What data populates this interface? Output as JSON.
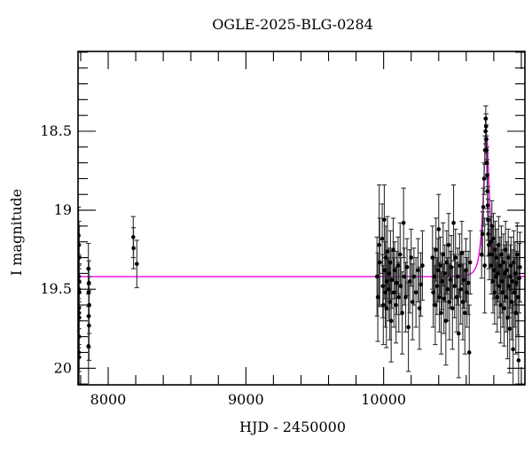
{
  "title": "OGLE-2025-BLG-0284",
  "colors": {
    "background": "#ffffff",
    "frame": "#000000",
    "points": "#000000",
    "error_bars": "#2e2e2e",
    "model_curve": "#f400e8"
  },
  "chart_data": {
    "type": "scatter",
    "title": "OGLE-2025-BLG-0284",
    "xlabel": "HJD - 2450000",
    "ylabel": "I magnitude",
    "x_axis": {
      "range": [
        7781,
        11026
      ],
      "major_ticks": [
        8000,
        9000,
        10000,
        11000
      ],
      "labeled_ticks": [
        8000,
        9000,
        10000
      ],
      "minor_step": 200
    },
    "y_axis": {
      "range": [
        17.995,
        20.105
      ],
      "inverted": true,
      "major_ticks": [
        18.5,
        19.0,
        19.5,
        20.0
      ],
      "labeled_ticks": [
        "18.5",
        "19",
        "19.5",
        "20"
      ],
      "minor_step": 0.1
    },
    "model": {
      "description": "point-lens microlensing (Paczynski) model curve",
      "baseline_mag": 19.42,
      "t0": 10746,
      "tE": 38,
      "u0": 0.47,
      "peak_mag": 18.51
    },
    "points_format": [
      "hjd_minus_2450000",
      "I_mag",
      "err"
    ],
    "points": [
      [
        7785,
        19.16,
        0.18
      ],
      [
        7788,
        19.22,
        0.15
      ],
      [
        7790,
        19.3,
        0.2
      ],
      [
        7786,
        19.42,
        0.14
      ],
      [
        7789,
        19.45,
        0.16
      ],
      [
        7787,
        19.5,
        0.15
      ],
      [
        7791,
        19.52,
        0.18
      ],
      [
        7786,
        19.62,
        0.25
      ],
      [
        7788,
        19.65,
        0.2
      ],
      [
        7790,
        19.68,
        0.22
      ],
      [
        7789,
        19.8,
        0.22
      ],
      [
        7787,
        19.9,
        0.28
      ],
      [
        7789,
        19.93,
        0.18
      ],
      [
        7856,
        19.37,
        0.16
      ],
      [
        7860,
        19.46,
        0.14
      ],
      [
        7858,
        19.52,
        0.15
      ],
      [
        7862,
        19.6,
        0.18
      ],
      [
        7859,
        19.67,
        0.2
      ],
      [
        7861,
        19.73,
        0.22
      ],
      [
        7857,
        19.86,
        0.25
      ],
      [
        8182,
        19.17,
        0.13
      ],
      [
        8184,
        19.24,
        0.13
      ],
      [
        8208,
        19.34,
        0.15
      ],
      [
        9952,
        19.42,
        0.25
      ],
      [
        9958,
        19.55,
        0.28
      ],
      [
        9968,
        19.22,
        0.38
      ],
      [
        9972,
        19.33,
        0.28
      ],
      [
        9990,
        19.18,
        0.22
      ],
      [
        9994,
        19.48,
        0.2
      ],
      [
        9998,
        19.6,
        0.25
      ],
      [
        10005,
        19.06,
        0.22
      ],
      [
        10008,
        19.38,
        0.18
      ],
      [
        10012,
        19.52,
        0.22
      ],
      [
        10016,
        19.3,
        0.2
      ],
      [
        10020,
        19.62,
        0.25
      ],
      [
        10024,
        19.45,
        0.18
      ],
      [
        10028,
        19.26,
        0.22
      ],
      [
        10035,
        19.5,
        0.2
      ],
      [
        10040,
        19.4,
        0.16
      ],
      [
        10045,
        19.58,
        0.24
      ],
      [
        10050,
        19.33,
        0.2
      ],
      [
        10055,
        19.7,
        0.26
      ],
      [
        10060,
        19.44,
        0.18
      ],
      [
        10070,
        19.25,
        0.2
      ],
      [
        10075,
        19.52,
        0.22
      ],
      [
        10080,
        19.38,
        0.18
      ],
      [
        10090,
        19.6,
        0.24
      ],
      [
        10095,
        19.46,
        0.2
      ],
      [
        10105,
        19.35,
        0.18
      ],
      [
        10110,
        19.55,
        0.22
      ],
      [
        10120,
        19.28,
        0.2
      ],
      [
        10125,
        19.48,
        0.18
      ],
      [
        10135,
        19.65,
        0.26
      ],
      [
        10145,
        19.08,
        0.22
      ],
      [
        10150,
        19.42,
        0.18
      ],
      [
        10160,
        19.55,
        0.22
      ],
      [
        10170,
        19.36,
        0.18
      ],
      [
        10180,
        19.74,
        0.28
      ],
      [
        10190,
        19.45,
        0.2
      ],
      [
        10200,
        19.3,
        0.18
      ],
      [
        10210,
        19.58,
        0.24
      ],
      [
        10220,
        19.42,
        0.18
      ],
      [
        10235,
        19.52,
        0.22
      ],
      [
        10250,
        19.38,
        0.2
      ],
      [
        10260,
        19.62,
        0.26
      ],
      [
        10270,
        19.47,
        0.2
      ],
      [
        10282,
        19.35,
        0.22
      ],
      [
        10355,
        19.3,
        0.2
      ],
      [
        10360,
        19.52,
        0.22
      ],
      [
        10368,
        19.42,
        0.18
      ],
      [
        10375,
        19.6,
        0.25
      ],
      [
        10380,
        19.25,
        0.2
      ],
      [
        10388,
        19.48,
        0.18
      ],
      [
        10395,
        19.38,
        0.2
      ],
      [
        10400,
        19.12,
        0.22
      ],
      [
        10405,
        19.55,
        0.22
      ],
      [
        10412,
        19.35,
        0.18
      ],
      [
        10418,
        19.65,
        0.26
      ],
      [
        10425,
        19.45,
        0.18
      ],
      [
        10432,
        19.28,
        0.2
      ],
      [
        10438,
        19.56,
        0.22
      ],
      [
        10445,
        19.4,
        0.18
      ],
      [
        10452,
        19.7,
        0.28
      ],
      [
        10458,
        19.33,
        0.2
      ],
      [
        10465,
        19.5,
        0.2
      ],
      [
        10472,
        19.22,
        0.2
      ],
      [
        10478,
        19.58,
        0.24
      ],
      [
        10485,
        19.44,
        0.18
      ],
      [
        10492,
        19.36,
        0.2
      ],
      [
        10500,
        19.62,
        0.26
      ],
      [
        10508,
        19.08,
        0.24
      ],
      [
        10515,
        19.48,
        0.2
      ],
      [
        10522,
        19.3,
        0.18
      ],
      [
        10530,
        19.55,
        0.22
      ],
      [
        10538,
        19.42,
        0.18
      ],
      [
        10545,
        19.78,
        0.28
      ],
      [
        10552,
        19.35,
        0.2
      ],
      [
        10560,
        19.5,
        0.22
      ],
      [
        10568,
        19.27,
        0.2
      ],
      [
        10575,
        19.58,
        0.24
      ],
      [
        10582,
        19.44,
        0.18
      ],
      [
        10590,
        19.65,
        0.26
      ],
      [
        10598,
        19.38,
        0.2
      ],
      [
        10605,
        19.52,
        0.22
      ],
      [
        10615,
        19.46,
        0.2
      ],
      [
        10622,
        19.9,
        0.3
      ],
      [
        10628,
        19.33,
        0.2
      ],
      [
        10712,
        19.28,
        0.15
      ],
      [
        10718,
        19.15,
        0.14
      ],
      [
        10724,
        18.98,
        0.12
      ],
      [
        10730,
        18.8,
        0.1
      ],
      [
        10734,
        19.35,
        0.3
      ],
      [
        10736,
        18.62,
        0.09
      ],
      [
        10740,
        18.5,
        0.08
      ],
      [
        10742,
        18.42,
        0.08
      ],
      [
        10744,
        18.47,
        0.08
      ],
      [
        10746,
        18.55,
        0.09
      ],
      [
        10748,
        18.62,
        0.09
      ],
      [
        10750,
        18.7,
        0.1
      ],
      [
        10752,
        18.78,
        0.1
      ],
      [
        10754,
        18.88,
        0.11
      ],
      [
        10756,
        18.97,
        0.12
      ],
      [
        10758,
        19.06,
        0.13
      ],
      [
        10760,
        19.15,
        0.14
      ],
      [
        10764,
        19.22,
        0.15
      ],
      [
        10768,
        19.28,
        0.16
      ],
      [
        10778,
        19.2,
        0.16
      ],
      [
        10782,
        19.35,
        0.18
      ],
      [
        10786,
        19.1,
        0.16
      ],
      [
        10790,
        19.28,
        0.18
      ],
      [
        10794,
        19.45,
        0.2
      ],
      [
        10798,
        19.18,
        0.16
      ],
      [
        10802,
        19.38,
        0.18
      ],
      [
        10806,
        19.52,
        0.2
      ],
      [
        10810,
        19.25,
        0.18
      ],
      [
        10815,
        19.42,
        0.18
      ],
      [
        10820,
        19.3,
        0.18
      ],
      [
        10825,
        19.55,
        0.22
      ],
      [
        10830,
        19.4,
        0.18
      ],
      [
        10835,
        19.22,
        0.18
      ],
      [
        10840,
        19.48,
        0.2
      ],
      [
        10845,
        19.35,
        0.18
      ],
      [
        10850,
        19.6,
        0.24
      ],
      [
        10855,
        19.28,
        0.18
      ],
      [
        10860,
        19.45,
        0.2
      ],
      [
        10865,
        19.52,
        0.22
      ],
      [
        10870,
        19.33,
        0.18
      ],
      [
        10875,
        19.62,
        0.24
      ],
      [
        10880,
        19.4,
        0.18
      ],
      [
        10885,
        19.25,
        0.18
      ],
      [
        10890,
        19.55,
        0.22
      ],
      [
        10895,
        19.38,
        0.18
      ],
      [
        10900,
        19.68,
        0.26
      ],
      [
        10905,
        19.3,
        0.18
      ],
      [
        10910,
        19.48,
        0.2
      ],
      [
        10915,
        19.75,
        0.28
      ],
      [
        10920,
        19.42,
        0.2
      ],
      [
        10925,
        19.35,
        0.18
      ],
      [
        10930,
        19.58,
        0.24
      ],
      [
        10935,
        19.45,
        0.2
      ],
      [
        10940,
        19.88,
        0.3
      ],
      [
        10945,
        19.33,
        0.2
      ],
      [
        10950,
        19.52,
        0.22
      ],
      [
        10955,
        19.4,
        0.2
      ],
      [
        10960,
        19.65,
        0.26
      ],
      [
        10965,
        19.46,
        0.2
      ],
      [
        10970,
        19.28,
        0.2
      ],
      [
        10975,
        19.55,
        0.24
      ],
      [
        10980,
        19.95,
        0.3
      ],
      [
        10985,
        19.43,
        0.22
      ],
      [
        10990,
        19.36,
        0.22
      ]
    ]
  }
}
